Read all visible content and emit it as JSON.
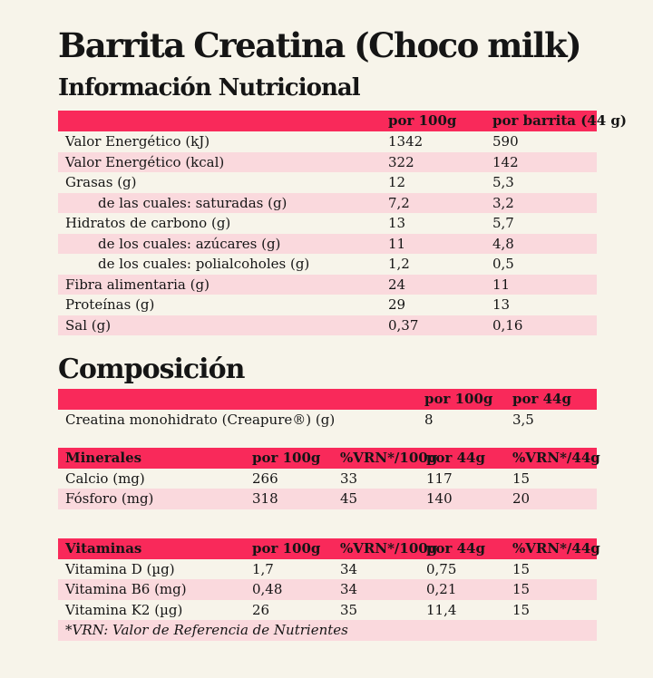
{
  "theme": {
    "accent_red": "#f9295a",
    "row_pink": "#fad9dd",
    "background_cream": "#f7f4ea",
    "text_color": "#151515"
  },
  "title": "Barrita Creatina (Choco milk)",
  "nutrition": {
    "heading": "Información Nutricional",
    "columns": [
      "por 100g",
      "por barrita (44 g)"
    ],
    "rows": [
      {
        "label": "Valor Energético (kJ)",
        "per100": "1342",
        "per44": "590"
      },
      {
        "label": "Valor Energético (kcal)",
        "per100": "322",
        "per44": "142"
      },
      {
        "label": "Grasas (g)",
        "per100": "12",
        "per44": "5,3"
      },
      {
        "label": "de las cuales: saturadas (g)",
        "per100": "7,2",
        "per44": "3,2"
      },
      {
        "label": "Hidratos de carbono (g)",
        "per100": "13",
        "per44": "5,7"
      },
      {
        "label": "de los cuales: azúcares (g)",
        "per100": "11",
        "per44": "4,8"
      },
      {
        "label": "de los cuales: polialcoholes (g)",
        "per100": "1,2",
        "per44": "0,5"
      },
      {
        "label": "Fibra alimentaria (g)",
        "per100": "24",
        "per44": "11"
      },
      {
        "label": "Proteínas (g)",
        "per100": "29",
        "per44": "13"
      },
      {
        "label": "Sal (g)",
        "per100": "0,37",
        "per44": "0,16"
      }
    ]
  },
  "composition": {
    "heading": "Composición",
    "columns": [
      "por 100g",
      "por 44g"
    ],
    "rows": [
      {
        "label": "Creatina monohidrato (Creapure®) (g)",
        "per100": "8",
        "per44": "3,5"
      }
    ]
  },
  "minerals": {
    "heading": "Minerales",
    "columns": [
      "por 100g",
      "%VRN*/100g",
      "por 44g",
      "%VRN*/44g"
    ],
    "rows": [
      {
        "label": "Calcio (mg)",
        "values": [
          "266",
          "33",
          "117",
          "15"
        ]
      },
      {
        "label": "Fósforo (mg)",
        "values": [
          "318",
          "45",
          "140",
          "20"
        ]
      }
    ]
  },
  "vitamins": {
    "heading": "Vitaminas",
    "columns": [
      "por 100g",
      "%VRN*/100g",
      "por 44g",
      "%VRN*/44g"
    ],
    "rows": [
      {
        "label": "Vitamina D (µg)",
        "values": [
          "1,7",
          "34",
          "0,75",
          "15"
        ]
      },
      {
        "label": "Vitamina B6 (mg)",
        "values": [
          "0,48",
          "34",
          "0,21",
          "15"
        ]
      },
      {
        "label": "Vitamina K2 (µg)",
        "values": [
          "26",
          "35",
          "11,4",
          "15"
        ]
      }
    ]
  },
  "footnote": "*VRN: Valor de Referencia de Nutrientes"
}
